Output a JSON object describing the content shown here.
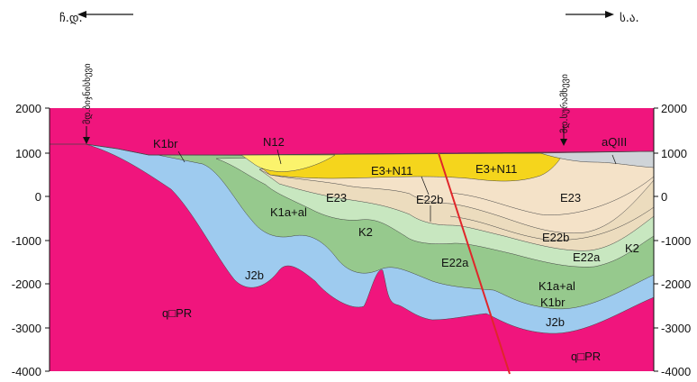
{
  "header": {
    "left_direction": "ჩ.დ.",
    "right_direction": "ს.ა."
  },
  "axis": {
    "left_ticks": [
      "2000",
      "1000",
      "0",
      "-1000",
      "-2000",
      "-3000",
      "-4000"
    ],
    "right_ticks": [
      "2000",
      "1000",
      "0",
      "-1000",
      "-2000",
      "-3000",
      "-4000"
    ]
  },
  "wells": {
    "left": "მდ.ბიჯნისხევი",
    "right": "მდ.სურამხევი"
  },
  "labels": {
    "k1br_top": "K1br",
    "n1_2": "N12",
    "aq3": "aQIII",
    "e3n1_left": "E3+N11",
    "e3n1_right": "E3+N11",
    "e2_3_left": "E23",
    "e2_2b_left": "E22b",
    "e2_3_right": "E23",
    "k1a_al_left": "K1a+al",
    "k2_left": "K2",
    "e2_2a_left": "E22a",
    "e2_2b_right": "E22b",
    "e2_2a_right": "E22a",
    "k2_right": "K2",
    "j2b_left": "J2b",
    "k1a_al_right": "K1a+al",
    "k1br_right": "K1br",
    "j2b_right": "J2b",
    "qpr_left": "q□PR",
    "qpr_right": "q□PR"
  },
  "colors": {
    "basement": "#f0157d",
    "j2b": "#9ecbef",
    "k1": "#96c98d",
    "k2": "#c8e7c0",
    "e22a": "#ecdcbe",
    "e23": "#f4e2c8",
    "e3n1": "#f5d51c",
    "n12": "#fbf36c",
    "aq": "#cfd4d8",
    "fault": "#e0262a"
  }
}
